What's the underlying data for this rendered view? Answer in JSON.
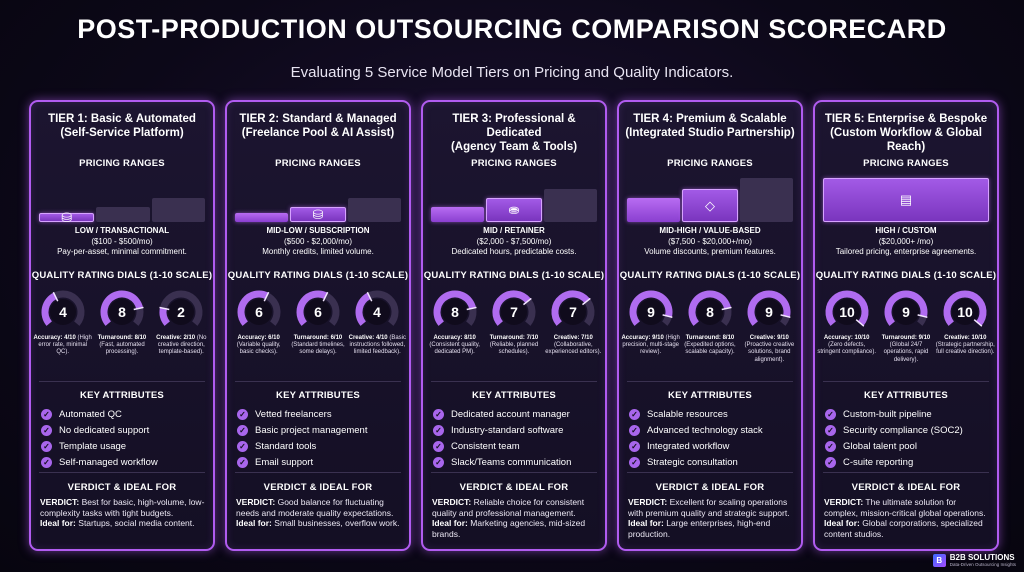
{
  "header": {
    "title": "POST-PRODUCTION OUTSOURCING COMPARISON SCORECARD",
    "subtitle": "Evaluating 5 Service Model Tiers on Pricing and Quality Indicators."
  },
  "section_labels": {
    "pricing": "PRICING RANGES",
    "quality": "QUALITY RATING DIALS (1-10 SCALE)",
    "attributes": "KEY ATTRIBUTES",
    "verdict": "VERDICT & IDEAL FOR",
    "verdict_prefix": "VERDICT:",
    "ideal_prefix": "Ideal for:"
  },
  "colors": {
    "accent": "#b15cf0",
    "dial_fill": "#b06cf0",
    "dial_track": "#3a3050",
    "background": "#0c0818"
  },
  "tiers": [
    {
      "title_line1": "TIER 1: Basic & Automated",
      "title_line2": "(Self-Service Platform)",
      "price_level": 1,
      "price_icon": "coin-stack-icon",
      "price_tier": "LOW / TRANSACTIONAL",
      "price_range": "($100 - $500/mo)",
      "price_note": "Pay-per-asset, minimal commitment.",
      "dials": [
        {
          "value": 4,
          "label": "Accuracy: 4/10",
          "desc": "(High error rate, minimal QC)."
        },
        {
          "value": 8,
          "label": "Turnaround: 8/10",
          "desc": "(Fast, automated processing)."
        },
        {
          "value": 2,
          "label": "Creative: 2/10",
          "desc": "(No creative direction, template-based)."
        }
      ],
      "attributes": [
        "Automated QC",
        "No dedicated support",
        "Template usage",
        "Self-managed workflow"
      ],
      "verdict": "Best for basic, high-volume, low-complexity tasks with tight budgets.",
      "ideal": "Startups, social media content."
    },
    {
      "title_line1": "TIER 2: Standard & Managed",
      "title_line2": "(Freelance Pool & AI Assist)",
      "price_level": 2,
      "price_icon": "coin-stack-icon",
      "price_tier": "MID-LOW / SUBSCRIPTION",
      "price_range": "($500 - $2,000/mo)",
      "price_note": "Monthly credits, limited volume.",
      "dials": [
        {
          "value": 6,
          "label": "Accuracy: 6/10",
          "desc": "(Variable quality, basic checks)."
        },
        {
          "value": 6,
          "label": "Turnaround: 6/10",
          "desc": "(Standard timelines, some delays)."
        },
        {
          "value": 4,
          "label": "Creative: 4/10",
          "desc": "(Basic instructions followed, limited feedback)."
        }
      ],
      "attributes": [
        "Vetted freelancers",
        "Basic project management",
        "Standard tools",
        "Email support"
      ],
      "verdict": "Good balance for fluctuating needs and moderate quality expectations.",
      "ideal": "Small businesses, overflow work."
    },
    {
      "title_line1": "TIER 3: Professional & Dedicated",
      "title_line2": "(Agency Team & Tools)",
      "price_level": 3,
      "price_icon": "coin-stacks-icon",
      "price_tier": "MID / RETAINER",
      "price_range": "($2,000 - $7,500/mo)",
      "price_note": "Dedicated hours, predictable costs.",
      "dials": [
        {
          "value": 8,
          "label": "Accuracy: 8/10",
          "desc": "(Consistent quality, dedicated PM)."
        },
        {
          "value": 7,
          "label": "Turnaround: 7/10",
          "desc": "(Reliable, planned schedules)."
        },
        {
          "value": 7,
          "label": "Creative: 7/10",
          "desc": "(Collaborative, experienced editors)."
        }
      ],
      "attributes": [
        "Dedicated account manager",
        "Industry-standard software",
        "Consistent team",
        "Slack/Teams communication"
      ],
      "verdict": "Reliable choice for consistent quality and professional management.",
      "ideal": "Marketing agencies, mid-sized brands."
    },
    {
      "title_line1": "TIER 4: Premium & Scalable",
      "title_line2": "(Integrated Studio Partnership)",
      "price_level": 4,
      "price_icon": "diamond-icon",
      "price_tier": "MID-HIGH / VALUE-BASED",
      "price_range": "($7,500 - $20,000+/mo)",
      "price_note": "Volume discounts, premium features.",
      "dials": [
        {
          "value": 9,
          "label": "Accuracy: 9/10",
          "desc": "(High precision, multi-stage review)."
        },
        {
          "value": 8,
          "label": "Turnaround: 8/10",
          "desc": "(Expedited options, scalable capacity)."
        },
        {
          "value": 9,
          "label": "Creative: 9/10",
          "desc": "(Proactive creative solutions, brand alignment)."
        }
      ],
      "attributes": [
        "Scalable resources",
        "Advanced technology stack",
        "Integrated workflow",
        "Strategic consultation"
      ],
      "verdict": "Excellent for scaling operations with premium quality and strategic support.",
      "ideal": "Large enterprises, high-end production."
    },
    {
      "title_line1": "TIER 5: Enterprise & Bespoke",
      "title_line2": "(Custom Workflow & Global Reach)",
      "price_level": 5,
      "price_icon": "treasure-globe-icon",
      "price_tier": "HIGH / CUSTOM",
      "price_range": "($20,000+ /mo)",
      "price_note": "Tailored pricing, enterprise agreements.",
      "dials": [
        {
          "value": 10,
          "label": "Accuracy: 10/10",
          "desc": "(Zero defects, stringent compliance)."
        },
        {
          "value": 9,
          "label": "Turnaround: 9/10",
          "desc": "(Global 24/7 operations, rapid delivery)."
        },
        {
          "value": 10,
          "label": "Creative: 10/10",
          "desc": "(Strategic partnership, full creative direction)."
        }
      ],
      "attributes": [
        "Custom-built pipeline",
        "Security compliance (SOC2)",
        "Global talent pool",
        "C-suite reporting"
      ],
      "verdict": "The ultimate solution for complex, mission-critical global operations.",
      "ideal": "Global corporations, specialized content studios."
    }
  ],
  "logo": {
    "mark": "B",
    "name": "B2B SOLUTIONS",
    "tagline": "Data-Driven Outsourcing Insights"
  }
}
